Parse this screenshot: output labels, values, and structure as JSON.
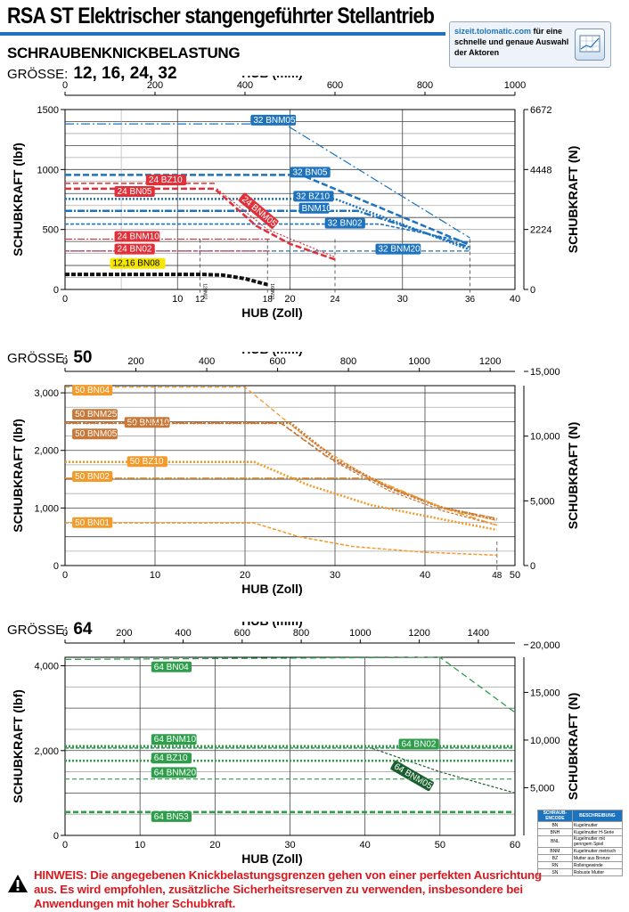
{
  "header": {
    "title": "RSA ST Elektrischer stangengeführter Stellantrieb",
    "section_title": "SCHRAUBENKNICKBELASTUNG",
    "promo_url": "sizeit.tolomatic.com",
    "promo_text": "für eine schnelle und genaue Auswahl der Aktoren",
    "size_prefix": "GRÖSSE:",
    "brand_color": "#1e73be",
    "promo_icon": "chart-screen-icon"
  },
  "chart_data": [
    {
      "type": "line",
      "size_label": "12, 16, 24, 32",
      "xlabel_top": "HUB (mm)",
      "xlabel_bottom": "HUB (Zoll)",
      "ylabel_left": "SCHUBKRAFT (lbf)",
      "ylabel_right": "SCHUBKRAFT (N)",
      "xlim_in": [
        0,
        40
      ],
      "ylim_lbf": [
        0,
        1500
      ],
      "x_ticks_in": [
        "0",
        "10",
        "20",
        "30",
        "40"
      ],
      "x_ticks_mm": [
        "0",
        "200",
        "400",
        "600",
        "800",
        "1000"
      ],
      "y_ticks_lbf": [
        "0",
        "500",
        "1000",
        "1500"
      ],
      "y_ticks_n": [
        {
          "v": 0,
          "l": "0"
        },
        {
          "v": 2224,
          "l": "2224"
        },
        {
          "v": 4448,
          "l": "4448"
        },
        {
          "v": 6672,
          "l": "6672"
        }
      ],
      "stroke_markers": [
        {
          "x": 12,
          "l": "12"
        },
        {
          "x": 18,
          "l": "18"
        },
        {
          "x": 24,
          "l": "24"
        },
        {
          "x": 36,
          "l": "36"
        }
      ],
      "rot_labels": [
        {
          "x": 12.3,
          "y": 50,
          "l": "12BN02"
        },
        {
          "x": 18.3,
          "y": 50,
          "l": "16BN10"
        }
      ],
      "series": [
        {
          "name": "32 BNM05",
          "color": "#1e73be",
          "dash": "10 3 2 3",
          "w": 1.2,
          "lbl": {
            "x": 16.5,
            "y": 1390
          },
          "points": [
            [
              0,
              1380
            ],
            [
              19.5,
              1380
            ],
            [
              36,
              430
            ]
          ]
        },
        {
          "name": "32 BN05",
          "color": "#1e73be",
          "dash": "7 3",
          "w": 2.5,
          "lbl": {
            "x": 20,
            "y": 955
          },
          "points": [
            [
              0,
              955
            ],
            [
              21,
              955
            ],
            [
              36,
              370
            ]
          ]
        },
        {
          "name": "32 BZ10",
          "color": "#1e73be",
          "dash": "2 2",
          "w": 2.5,
          "lbl": {
            "x": 20.3,
            "y": 755
          },
          "points": [
            [
              0,
              755
            ],
            [
              24,
              755
            ],
            [
              36,
              330
            ]
          ]
        },
        {
          "name": "BNM10",
          "color": "#1e73be",
          "dash": "8 2 2 2",
          "w": 2.5,
          "lbl": {
            "x": 20.8,
            "y": 655
          },
          "points": [
            [
              0,
              655
            ],
            [
              26,
              655
            ],
            [
              36,
              350
            ]
          ]
        },
        {
          "name": "32 BN02",
          "color": "#1e73be",
          "dash": "4 2",
          "w": 1.6,
          "lbl": {
            "x": 23.1,
            "y": 530
          },
          "points": [
            [
              0,
              545
            ],
            [
              28,
              545
            ],
            [
              36,
              390
            ]
          ]
        },
        {
          "name": "32 BNM20",
          "color": "#1e73be",
          "dash": "5 3",
          "w": 1.2,
          "lbl": {
            "x": 27.6,
            "y": 315
          },
          "points": [
            [
              0,
              320
            ],
            [
              36,
              320
            ]
          ]
        },
        {
          "name": "24 BZ10",
          "color": "#e0313a",
          "dash": "6 3",
          "w": 1.5,
          "lbl": {
            "x": 7.2,
            "y": 890
          },
          "points": [
            [
              0,
              885
            ],
            [
              13.3,
              885
            ]
          ]
        },
        {
          "name": "24 BN05",
          "color": "#e0313a",
          "dash": "7 3",
          "w": 2.5,
          "lbl": {
            "x": 4.4,
            "y": 795
          },
          "points": [
            [
              0,
              840
            ],
            [
              13.3,
              840
            ],
            [
              17,
              530
            ],
            [
              20,
              380
            ],
            [
              24,
              250
            ]
          ]
        },
        {
          "name": "24 BNM05",
          "color": "#e0313a",
          "dash": "2 2",
          "w": 1.2,
          "lbl": {
            "x": 15.5,
            "y": 760,
            "r": 40
          },
          "points": [
            [
              13.5,
              840
            ],
            [
              18,
              500
            ],
            [
              24,
              270
            ]
          ]
        },
        {
          "name": "24 BNM10",
          "color": "#e0313a",
          "dash": "8 2 2 2",
          "w": 1.2,
          "lbl": {
            "x": 4.4,
            "y": 420
          },
          "points": [
            [
              0,
              420
            ],
            [
              18.2,
              420
            ]
          ]
        },
        {
          "name": "24 BN02",
          "color": "#e0313a",
          "dash": "4 2",
          "w": 1.2,
          "lbl": {
            "x": 4.4,
            "y": 315
          },
          "points": [
            [
              0,
              320
            ],
            [
              18.2,
              320
            ]
          ]
        },
        {
          "name": "12,16 BN08",
          "color": "#111111",
          "dash": "5 2",
          "w": 4,
          "lbl": {
            "x": 4.0,
            "y": 195
          },
          "points": [
            [
              0,
              125
            ],
            [
              12.3,
              125
            ],
            [
              14,
              120
            ],
            [
              16,
              90
            ],
            [
              18,
              40
            ]
          ]
        }
      ]
    },
    {
      "type": "line",
      "size_label": "50",
      "xlabel_top": "HUB (mm)",
      "xlabel_bottom": "HUB (Zoll)",
      "ylabel_left": "SCHUBKRAFT (lbf)",
      "ylabel_right": "SCHUBKRAFT (N)",
      "xlim_in": [
        0,
        50
      ],
      "ylim_lbf": [
        0,
        3125
      ],
      "x_ticks_in": [
        "0",
        "10",
        "20",
        "30",
        "40",
        "50"
      ],
      "x_ticks_mm": [
        "0",
        "200",
        "400",
        "600",
        "800",
        "1000",
        "1200"
      ],
      "y_ticks_lbf": [
        {
          "v": 0,
          "l": "0"
        },
        {
          "v": 1000,
          "l": "1,000"
        },
        {
          "v": 2000,
          "l": "2,000"
        },
        {
          "v": 3000,
          "l": "3,000"
        }
      ],
      "y_ticks_n": [
        {
          "v": 0,
          "l": "0"
        },
        {
          "v": 5000,
          "l": "5,000"
        },
        {
          "v": 10000,
          "l": "10,000"
        },
        {
          "v": 15000,
          "l": "15,000"
        }
      ],
      "stroke_markers": [
        {
          "x": 48,
          "l": "48"
        }
      ],
      "series": [
        {
          "name": "50 BN04",
          "color": "#f39a2b",
          "dash": "5 3",
          "w": 1.3,
          "lbl": {
            "x": 0.8,
            "y": 3000
          },
          "points": [
            [
              0,
              3100
            ],
            [
              20,
              3100
            ],
            [
              27,
              2200
            ],
            [
              34,
              1500
            ],
            [
              42,
              1000
            ],
            [
              48,
              780
            ]
          ]
        },
        {
          "name": "50 BNM25",
          "color": "#c8793a",
          "dash": "3 2",
          "w": 1.3,
          "lbl": {
            "x": 0.8,
            "y": 2580
          },
          "points": [
            [
              0,
              2480
            ],
            [
              24,
              2480
            ],
            [
              30,
              1800
            ],
            [
              36,
              1300
            ],
            [
              42,
              950
            ],
            [
              48,
              700
            ]
          ]
        },
        {
          "name": "50 BNM10",
          "color": "#c8793a",
          "dash": "2 2",
          "w": 3,
          "lbl": {
            "x": 6.6,
            "y": 2440
          },
          "points": [
            [
              0,
              2480
            ],
            [
              25,
              2480
            ],
            [
              30,
              1850
            ],
            [
              36,
              1350
            ],
            [
              42,
              1000
            ],
            [
              48,
              800
            ]
          ]
        },
        {
          "name": "50 BNM05",
          "color": "#c8793a",
          "dash": "7 3",
          "w": 1.3,
          "lbl": {
            "x": 0.8,
            "y": 2240
          },
          "points": [
            [
              0,
              2470
            ],
            [
              24,
              2470
            ],
            [
              29,
              1900
            ],
            [
              36,
              1350
            ],
            [
              42,
              1000
            ],
            [
              48,
              820
            ]
          ]
        },
        {
          "name": "50 BZ10",
          "color": "#f39a2b",
          "dash": "2 2",
          "w": 2.6,
          "lbl": {
            "x": 6.9,
            "y": 1760
          },
          "points": [
            [
              0,
              1800
            ],
            [
              21,
              1800
            ],
            [
              27,
              1400
            ],
            [
              34,
              1050
            ],
            [
              42,
              800
            ],
            [
              48,
              620
            ]
          ]
        },
        {
          "name": "50 BN02",
          "color": "#f39a2b",
          "dash": "8 2 2 2",
          "w": 1.5,
          "lbl": {
            "x": 0.8,
            "y": 1500
          },
          "points": [
            [
              0,
              1520
            ],
            [
              34,
              1520
            ],
            [
              42,
              1000
            ],
            [
              48,
              700
            ]
          ]
        },
        {
          "name": "50 BN01",
          "color": "#f39a2b",
          "dash": "4 2",
          "w": 1.5,
          "lbl": {
            "x": 0.8,
            "y": 700
          },
          "points": [
            [
              0,
              740
            ],
            [
              21,
              740
            ],
            [
              26,
              500
            ],
            [
              32,
              330
            ],
            [
              40,
              230
            ],
            [
              48,
              180
            ]
          ]
        }
      ]
    },
    {
      "type": "line",
      "size_label": "64",
      "xlabel_top": "HUB (mm)",
      "xlabel_bottom": "HUB (Zoll)",
      "ylabel_left": "SCHUBKRAFT (lbf)",
      "ylabel_right": "SCHUBKRAFT (N)",
      "xlim_in": [
        0,
        60
      ],
      "ylim_lbf": [
        0,
        4200
      ],
      "x_ticks_in": [
        "0",
        "10",
        "20",
        "30",
        "40",
        "50",
        "60"
      ],
      "x_ticks_mm": [
        "0",
        "200",
        "400",
        "600",
        "800",
        "1000",
        "1200",
        "1400"
      ],
      "y_ticks_lbf": [
        {
          "v": 0,
          "l": "0"
        },
        {
          "v": 2000,
          "l": "2,000"
        },
        {
          "v": 4000,
          "l": "4,000"
        }
      ],
      "y_ticks_n": [
        {
          "v": 5000,
          "l": "5,000"
        },
        {
          "v": 10000,
          "l": "10,000"
        },
        {
          "v": 15000,
          "l": "15,000"
        },
        {
          "v": 20000,
          "l": "20,000"
        }
      ],
      "stroke_markers": [],
      "series": [
        {
          "name": "64 BN04",
          "color": "#2e9e4a",
          "dash": "7 4",
          "w": 1.3,
          "lbl": {
            "x": 11.5,
            "y": 3910
          },
          "points": [
            [
              0,
              4150
            ],
            [
              50,
              4200
            ],
            [
              60,
              2900
            ]
          ]
        },
        {
          "name": "64 BNM10",
          "color": "#2e9e4a",
          "dash": "2 2",
          "w": 3,
          "lbl": {
            "x": 11.5,
            "y": 2200
          },
          "points": [
            [
              0,
              2100
            ],
            [
              60,
              2100
            ]
          ]
        },
        {
          "name": "64 BN02",
          "color": "#2e9e4a",
          "dash": "4 2",
          "w": 1.5,
          "lbl": {
            "x": 44.5,
            "y": 2090
          },
          "points": [
            [
              0,
              2060
            ],
            [
              60,
              2060
            ]
          ]
        },
        {
          "name": "64 BNM05",
          "color": "#1b5e30",
          "dash": "3 2",
          "w": 1.2,
          "lbl": {
            "x": 43.5,
            "y": 1620,
            "r": 30
          },
          "points": [
            [
              41,
              2050
            ],
            [
              50,
              1500
            ],
            [
              60,
              1000
            ]
          ]
        },
        {
          "name": "64 BZ10",
          "color": "#2e9e4a",
          "dash": "2 2",
          "w": 2.6,
          "lbl": {
            "x": 11.5,
            "y": 1760
          },
          "points": [
            [
              0,
              1760
            ],
            [
              60,
              1760
            ]
          ]
        },
        {
          "name": "64 BNM20",
          "color": "#2e9e4a",
          "dash": "5 3",
          "w": 1.2,
          "lbl": {
            "x": 11.5,
            "y": 1420
          },
          "points": [
            [
              0,
              1330
            ],
            [
              60,
              1330
            ]
          ]
        },
        {
          "name": "64 BN53",
          "color": "#2e9e4a",
          "dash": "6 3",
          "w": 2.6,
          "lbl": {
            "x": 11.5,
            "y": 380
          },
          "points": [
            [
              0,
              550
            ],
            [
              60,
              550
            ]
          ]
        }
      ]
    }
  ],
  "legend": {
    "header_code": "SCHRAUB-ENCODE",
    "header_desc": "BESCHREIBUNG",
    "rows": [
      [
        "BN",
        "Kugelmutter"
      ],
      [
        "BNH",
        "Kugelmutter H-Serie"
      ],
      [
        "BNL",
        "Kugelmutter mit geringem Spiel"
      ],
      [
        "BNM",
        "Kugelmutter metrisch"
      ],
      [
        "BZ",
        "Mutter aus Bronze"
      ],
      [
        "RN",
        "Rollengewinde"
      ],
      [
        "SN",
        "Robuste Mutter"
      ]
    ]
  },
  "warning": {
    "icon": "warning-triangle-icon",
    "text": "HINWEIS: Die angegebenen Knickbelastungsgrenzen gehen von einer perfekten Ausrichtung aus. Es wird empfohlen, zusätzliche Sicherheitsreserven zu verwenden, insbesondere bei Anwendungen mit hoher Schubkraft."
  }
}
